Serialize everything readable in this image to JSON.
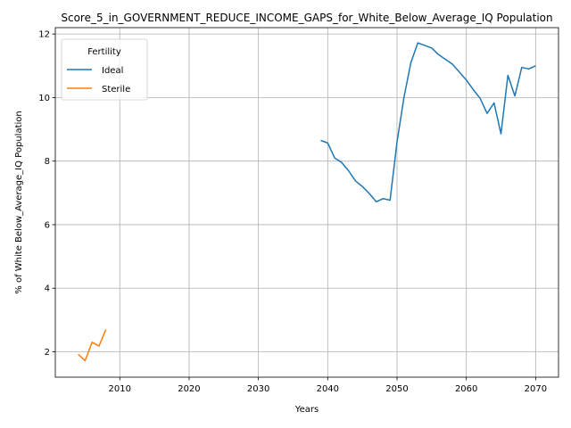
{
  "chart_data": {
    "type": "line",
    "title": "Score_5_in_GOVERNMENT_REDUCE_INCOME_GAPS_for_White_Below_Average_IQ Population",
    "xlabel": "Years",
    "ylabel": "% of White Below_Average_IQ Population",
    "xlim": [
      2000.7,
      2073.3
    ],
    "ylim": [
      1.2,
      12.2
    ],
    "xticks": [
      2010,
      2020,
      2030,
      2040,
      2050,
      2060,
      2070
    ],
    "yticks": [
      2,
      4,
      6,
      8,
      10,
      12
    ],
    "grid": true,
    "legend": {
      "title": "Fertility",
      "placement": "top-left"
    },
    "series": [
      {
        "name": "Ideal",
        "color": "#1f77b4",
        "x": [
          2039,
          2040,
          2041,
          2042,
          2043,
          2044,
          2045,
          2046,
          2047,
          2048,
          2049,
          2050,
          2051,
          2052,
          2053,
          2054,
          2055,
          2056,
          2057,
          2058,
          2059,
          2060,
          2061,
          2062,
          2063,
          2064,
          2065,
          2066,
          2067,
          2068,
          2069,
          2070
        ],
        "y": [
          8.65,
          8.57,
          8.1,
          7.96,
          7.7,
          7.38,
          7.2,
          6.98,
          6.72,
          6.82,
          6.77,
          8.6,
          10.0,
          11.1,
          11.72,
          11.64,
          11.56,
          11.35,
          11.2,
          11.05,
          10.8,
          10.55,
          10.25,
          9.97,
          9.5,
          9.83,
          8.86,
          10.7,
          10.05,
          10.95,
          10.9,
          11.0
        ]
      },
      {
        "name": "Sterile",
        "color": "#ff7f0e",
        "x": [
          2004,
          2005,
          2006,
          2007,
          2008
        ],
        "y": [
          1.92,
          1.72,
          2.3,
          2.18,
          2.7
        ]
      }
    ]
  }
}
